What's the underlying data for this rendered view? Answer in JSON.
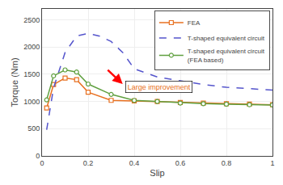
{
  "chart_data": {
    "type": "line",
    "xlabel": "Slip",
    "ylabel": "Torque (Nm)",
    "xlim": [
      0,
      1.0
    ],
    "ylim": [
      0,
      2700
    ],
    "xticks": [
      0,
      0.2,
      0.4,
      0.6,
      0.8,
      1.0
    ],
    "yticks": [
      0,
      500,
      1000,
      1500,
      2000,
      2500
    ],
    "grid": true,
    "legend": "upper right",
    "series": [
      {
        "name": "FEA",
        "color": "#e87020",
        "marker": "square",
        "line_style": "solid",
        "x": [
          0.02,
          0.05,
          0.1,
          0.15,
          0.2,
          0.3,
          0.4,
          0.5,
          0.6,
          0.7,
          0.8,
          0.9,
          1.0
        ],
        "values": [
          880,
          1310,
          1430,
          1400,
          1170,
          1020,
          1010,
          1000,
          980,
          970,
          960,
          950,
          940
        ]
      },
      {
        "name": "T-shaped equivalent circuit",
        "color": "#5555cc",
        "marker": "none",
        "line_style": "dashed",
        "x": [
          0.02,
          0.05,
          0.1,
          0.15,
          0.2,
          0.25,
          0.3,
          0.35,
          0.4,
          0.5,
          0.6,
          0.7,
          0.8,
          0.9,
          1.0
        ],
        "values": [
          480,
          1250,
          1900,
          2200,
          2250,
          2200,
          2100,
          1900,
          1600,
          1450,
          1380,
          1310,
          1260,
          1230,
          1210
        ]
      },
      {
        "name": "T-shaped equivalent circuit\n(FEA based)",
        "color": "#60a040",
        "marker": "circle",
        "line_style": "solid",
        "x": [
          0.02,
          0.05,
          0.1,
          0.15,
          0.2,
          0.3,
          0.4,
          0.5,
          0.6,
          0.7,
          0.8,
          0.9,
          1.0
        ],
        "values": [
          1030,
          1470,
          1580,
          1540,
          1320,
          1130,
          1020,
          1000,
          970,
          960,
          950,
          940,
          935
        ]
      }
    ],
    "annotations": [
      {
        "text": "Large improvement",
        "color": "#e87020"
      }
    ]
  }
}
